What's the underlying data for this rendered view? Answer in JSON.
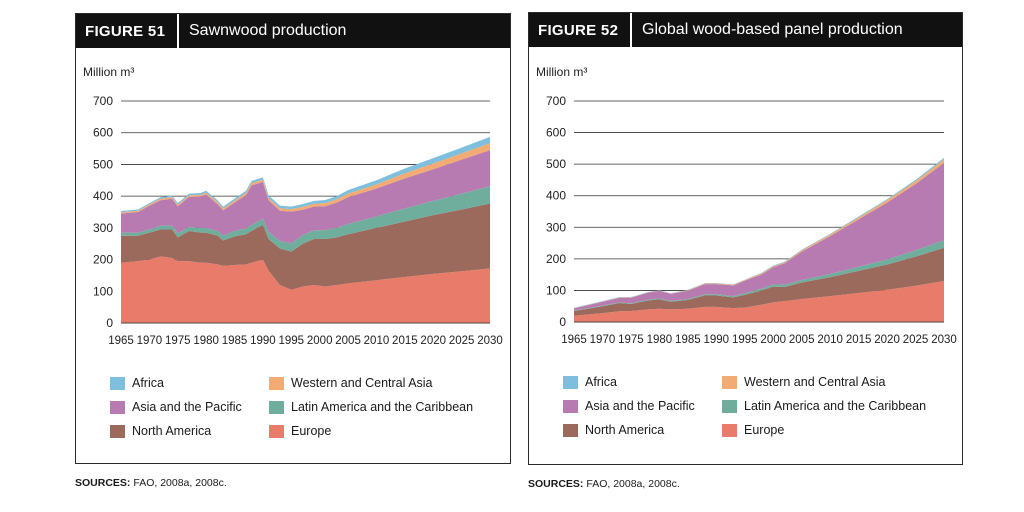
{
  "colors": {
    "Africa": "#7dbfdc",
    "Western and Central Asia": "#f2ab72",
    "Asia and the Pacific": "#b87bb1",
    "Latin America and the Caribbean": "#6fae9c",
    "North America": "#9b6a5d",
    "Europe": "#e87b6a"
  },
  "figures": [
    {
      "label": "FIGURE  51",
      "title": "Sawnwood production",
      "unit": "Million m³",
      "sources_label": "SOURCES:",
      "sources_text": " FAO, 2008a, 2008c."
    },
    {
      "label": "FIGURE  52",
      "title": "Global wood-based panel production",
      "unit": "Million m³",
      "sources_label": "SOURCES:",
      "sources_text": " FAO, 2008a, 2008c."
    }
  ],
  "chart_data": [
    {
      "type": "area",
      "stacked": true,
      "title": "Sawnwood production",
      "ylabel": "Million m³",
      "xlabel": "",
      "ylim": [
        0,
        700
      ],
      "yticks": [
        0,
        100,
        200,
        300,
        400,
        500,
        600,
        700
      ],
      "xticks": [
        "1965",
        "1970",
        "1975",
        "1980",
        "1985",
        "1990",
        "1995",
        "2000",
        "2005",
        "2010",
        "2015",
        "2020",
        "2025",
        "2030"
      ],
      "x": [
        1965,
        1968,
        1970,
        1972,
        1974,
        1975,
        1977,
        1979,
        1980,
        1982,
        1983,
        1985,
        1987,
        1988,
        1990,
        1991,
        1993,
        1995,
        1997,
        1999,
        2001,
        2003,
        2005,
        2010,
        2015,
        2020,
        2025,
        2030
      ],
      "series": [
        {
          "name": "Europe",
          "values": [
            190,
            195,
            200,
            210,
            205,
            195,
            195,
            190,
            190,
            185,
            180,
            183,
            185,
            190,
            200,
            165,
            120,
            105,
            115,
            120,
            115,
            120,
            125,
            135,
            145,
            155,
            163,
            172
          ]
        },
        {
          "name": "North America",
          "values": [
            85,
            80,
            85,
            85,
            90,
            75,
            95,
            95,
            95,
            90,
            80,
            90,
            95,
            100,
            110,
            100,
            115,
            120,
            135,
            145,
            150,
            150,
            155,
            165,
            175,
            185,
            195,
            205
          ]
        },
        {
          "name": "Latin America and the Caribbean",
          "values": [
            10,
            10,
            10,
            12,
            12,
            13,
            13,
            14,
            15,
            15,
            15,
            17,
            18,
            19,
            20,
            22,
            24,
            26,
            27,
            27,
            28,
            30,
            32,
            36,
            41,
            45,
            50,
            54
          ]
        },
        {
          "name": "Asia and the Pacific",
          "values": [
            60,
            65,
            75,
            80,
            85,
            85,
            95,
            100,
            105,
            85,
            80,
            90,
            105,
            125,
            115,
            100,
            95,
            100,
            80,
            75,
            75,
            80,
            85,
            88,
            95,
            100,
            107,
            114
          ]
        },
        {
          "name": "Western and Central Asia",
          "values": [
            4,
            4,
            4,
            5,
            5,
            5,
            5,
            5,
            6,
            6,
            6,
            6,
            7,
            7,
            7,
            7,
            8,
            8,
            9,
            9,
            10,
            10,
            11,
            13,
            16,
            18,
            20,
            22
          ]
        },
        {
          "name": "Africa",
          "values": [
            4,
            4,
            4,
            5,
            5,
            5,
            5,
            6,
            6,
            6,
            6,
            6,
            7,
            7,
            7,
            8,
            8,
            8,
            9,
            9,
            10,
            10,
            11,
            13,
            15,
            17,
            18,
            20
          ]
        }
      ],
      "legend": [
        "Africa",
        "Western and Central Asia",
        "Asia and the Pacific",
        "Latin America and the Caribbean",
        "North America",
        "Europe"
      ]
    },
    {
      "type": "area",
      "stacked": true,
      "title": "Global wood-based panel production",
      "ylabel": "Million m³",
      "xlabel": "",
      "ylim": [
        0,
        700
      ],
      "yticks": [
        0,
        100,
        200,
        300,
        400,
        500,
        600,
        700
      ],
      "xticks": [
        "1965",
        "1970",
        "1975",
        "1980",
        "1985",
        "1990",
        "1995",
        "2000",
        "2005",
        "2010",
        "2015",
        "2020",
        "2025",
        "2030"
      ],
      "x": [
        1965,
        1970,
        1973,
        1975,
        1978,
        1980,
        1982,
        1985,
        1988,
        1990,
        1993,
        1995,
        1998,
        2000,
        2002,
        2005,
        2010,
        2015,
        2020,
        2025,
        2030
      ],
      "series": [
        {
          "name": "Europe",
          "values": [
            20,
            28,
            34,
            35,
            40,
            42,
            40,
            42,
            48,
            48,
            44,
            46,
            55,
            62,
            66,
            73,
            82,
            92,
            102,
            115,
            130
          ]
        },
        {
          "name": "North America",
          "values": [
            15,
            22,
            26,
            22,
            28,
            30,
            24,
            28,
            36,
            36,
            34,
            40,
            45,
            50,
            45,
            52,
            60,
            70,
            80,
            92,
            105
          ]
        },
        {
          "name": "Latin America and the Caribbean",
          "values": [
            1,
            2,
            2,
            2,
            3,
            3,
            3,
            3,
            4,
            4,
            4,
            5,
            6,
            7,
            7,
            8,
            10,
            13,
            16,
            20,
            24
          ]
        },
        {
          "name": "Asia and the Pacific",
          "values": [
            7,
            12,
            15,
            18,
            22,
            24,
            22,
            26,
            32,
            32,
            34,
            40,
            45,
            55,
            68,
            90,
            120,
            150,
            180,
            210,
            245
          ]
        },
        {
          "name": "Western and Central Asia",
          "values": [
            1,
            1,
            1,
            1,
            1,
            1,
            1,
            2,
            2,
            2,
            2,
            2,
            3,
            3,
            3,
            4,
            5,
            6,
            8,
            9,
            11
          ]
        },
        {
          "name": "Africa",
          "values": [
            1,
            1,
            1,
            1,
            1,
            1,
            1,
            1,
            1,
            1,
            1,
            1,
            2,
            2,
            2,
            2,
            2,
            3,
            3,
            4,
            5
          ]
        }
      ],
      "legend": [
        "Africa",
        "Western and Central Asia",
        "Asia and the Pacific",
        "Latin America and the Caribbean",
        "North America",
        "Europe"
      ]
    }
  ]
}
